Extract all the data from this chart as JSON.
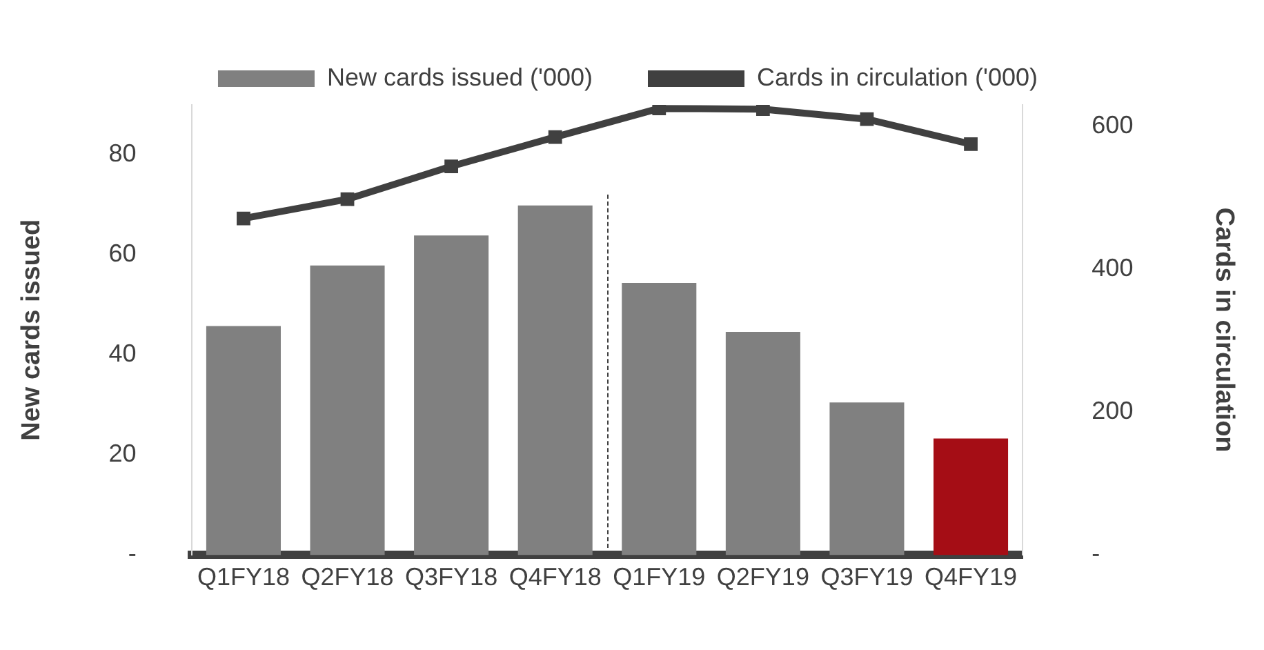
{
  "chart_data": {
    "type": "bar",
    "categories": [
      "Q1FY18",
      "Q2FY18",
      "Q3FY18",
      "Q4FY18",
      "Q1FY19",
      "Q2FY19",
      "Q3FY19",
      "Q4FY19"
    ],
    "series": [
      {
        "name": "New cards issued ('000)",
        "colors": [
          "#808080",
          "#808080",
          "#808080",
          "#808080",
          "#808080",
          "#808080",
          "#808080",
          "#a50d15"
        ],
        "values": [
          45.8,
          57.9,
          63.9,
          69.9,
          54.4,
          44.6,
          30.5,
          23.3
        ]
      },
      {
        "name": "Cards in circulation ('000)",
        "type": "line",
        "axis": "y2",
        "color": "#404040",
        "values": [
          471,
          498,
          544,
          585,
          625,
          624,
          610,
          575
        ]
      }
    ],
    "ylabel": "New cards issued",
    "y2label": "Cards in circulation",
    "ylim": [
      0,
      90
    ],
    "yticks": [
      {
        "value": 0,
        "label": "-"
      },
      20,
      40,
      60,
      80
    ],
    "y2lim": [
      0,
      630
    ],
    "y2ticks": [
      {
        "value": 0,
        "label": "-"
      },
      200,
      400,
      600
    ],
    "grid": false,
    "legend": "top",
    "marker": "square",
    "line_style": "solid"
  }
}
